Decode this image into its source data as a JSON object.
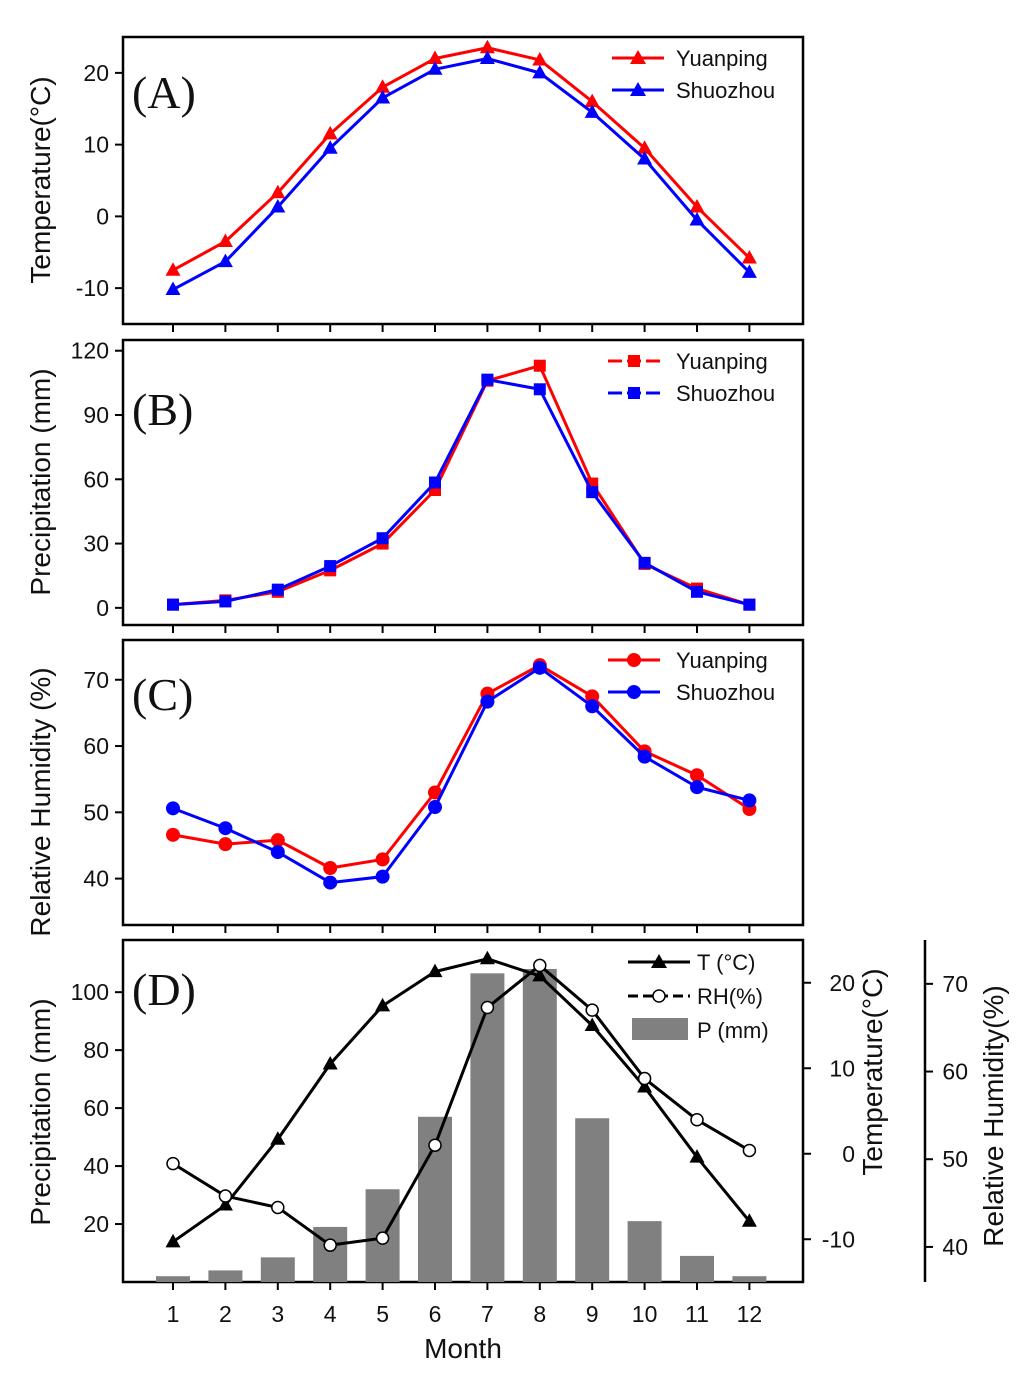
{
  "figure": {
    "xlabel": "Month"
  },
  "chart_data": [
    {
      "id": "A",
      "panel_label": "(A)",
      "type": "line",
      "x": [
        1,
        2,
        3,
        4,
        5,
        6,
        7,
        8,
        9,
        10,
        11,
        12
      ],
      "ylabel": "Temperature(°C)",
      "ylim": [
        -15,
        25
      ],
      "yticks": [
        -10,
        0,
        10,
        20
      ],
      "series": [
        {
          "name": "Yuanping",
          "color": "#ff0000",
          "marker": "triangle",
          "values": [
            -7.5,
            -3.5,
            3.3,
            11.5,
            18,
            22,
            23.5,
            21.8,
            16,
            9.5,
            1.3,
            -5.8
          ]
        },
        {
          "name": "Shuozhou",
          "color": "#0000ff",
          "marker": "triangle",
          "values": [
            -10.2,
            -6.3,
            1.3,
            9.5,
            16.5,
            20.5,
            22,
            20,
            14.5,
            8,
            -0.5,
            -7.8
          ]
        }
      ]
    },
    {
      "id": "B",
      "panel_label": "(B)",
      "type": "line",
      "x": [
        1,
        2,
        3,
        4,
        5,
        6,
        7,
        8,
        9,
        10,
        11,
        12
      ],
      "ylabel": "Precipitation (mm)",
      "ylim": [
        -8,
        125
      ],
      "yticks": [
        0,
        30,
        60,
        90,
        120
      ],
      "series": [
        {
          "name": "Yuanping",
          "color": "#ff0000",
          "marker": "square",
          "values": [
            1.5,
            3.5,
            7.5,
            17.5,
            30,
            55,
            106,
            113,
            58,
            20.5,
            9,
            1.5
          ]
        },
        {
          "name": "Shuozhou",
          "color": "#0000ff",
          "marker": "square",
          "values": [
            1.5,
            3,
            8.5,
            19.5,
            32.5,
            58.5,
            106.5,
            102,
            54,
            21,
            7.5,
            1.5
          ]
        }
      ]
    },
    {
      "id": "C",
      "panel_label": "(C)",
      "type": "line",
      "x": [
        1,
        2,
        3,
        4,
        5,
        6,
        7,
        8,
        9,
        10,
        11,
        12
      ],
      "ylabel": "Relative Humidity (%)",
      "ylim": [
        33,
        76
      ],
      "yticks": [
        40,
        50,
        60,
        70
      ],
      "series": [
        {
          "name": "Yuanping",
          "color": "#ff0000",
          "marker": "circle",
          "values": [
            46.6,
            45.2,
            45.8,
            41.6,
            42.9,
            53,
            67.9,
            72.2,
            67.5,
            59.2,
            55.6,
            50.5
          ]
        },
        {
          "name": "Shuozhou",
          "color": "#0000ff",
          "marker": "circle",
          "values": [
            50.6,
            47.6,
            44,
            39.4,
            40.3,
            50.8,
            66.7,
            71.8,
            66,
            58.4,
            53.8,
            51.8
          ]
        }
      ]
    },
    {
      "id": "D",
      "panel_label": "(D)",
      "type": "bar+line",
      "x": [
        1,
        2,
        3,
        4,
        5,
        6,
        7,
        8,
        9,
        10,
        11,
        12
      ],
      "xticks": [
        "1",
        "2",
        "3",
        "4",
        "5",
        "6",
        "7",
        "8",
        "9",
        "10",
        "11",
        "12"
      ],
      "xlabel": "Month",
      "ylabel_left": "Precipitation (mm)",
      "ylim_left": [
        0,
        118
      ],
      "yticks_left": [
        20,
        40,
        60,
        80,
        100
      ],
      "ylabel_right1": "Temperature(°C)",
      "ylim_right1": [
        -15,
        25
      ],
      "yticks_right1": [
        -10,
        0,
        10,
        20
      ],
      "ylabel_right2": "Relative Humidity(%)",
      "ylim_right2": [
        36,
        75
      ],
      "yticks_right2": [
        40,
        50,
        60,
        70
      ],
      "bars": {
        "name": "P (mm)",
        "color": "#808080",
        "values": [
          2,
          4,
          8.5,
          19,
          32,
          57,
          106.5,
          108,
          56.5,
          21,
          9,
          2
        ]
      },
      "lines": [
        {
          "name": "T (°C)",
          "color": "#000000",
          "marker": "filled-triangle",
          "axis": "right1",
          "values": [
            -10.3,
            -6,
            1.7,
            10.5,
            17.3,
            21.3,
            22.8,
            20.8,
            15,
            7.8,
            -0.4,
            -7.9
          ]
        },
        {
          "name": "RH(%)",
          "color": "#000000",
          "marker": "open-circle",
          "axis": "right2",
          "dashed": true,
          "values": [
            49.5,
            45.8,
            44.5,
            40.2,
            41,
            51.6,
            67.3,
            72.1,
            67,
            59.2,
            54.5,
            51
          ]
        }
      ]
    }
  ]
}
